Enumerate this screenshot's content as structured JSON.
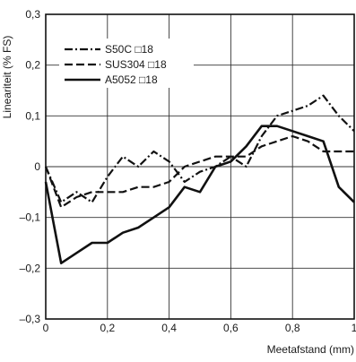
{
  "chart_data": {
    "type": "line",
    "xlabel": "Meetafstand (mm)",
    "ylabel": "Lineariteit (% FS)",
    "xlim": [
      0,
      1
    ],
    "ylim": [
      -0.3,
      0.3
    ],
    "x_ticks": [
      0,
      0.2,
      0.4,
      0.6,
      0.8,
      1
    ],
    "x_tick_labels": [
      "0",
      "0,2",
      "0,4",
      "0,6",
      "0,8",
      "1"
    ],
    "y_ticks": [
      -0.3,
      -0.2,
      -0.1,
      0,
      0.1,
      0.2,
      0.3
    ],
    "y_tick_labels": [
      "–0,3",
      "–0,2",
      "–0,1",
      "0",
      "0,1",
      "0,2",
      "0,3"
    ],
    "grid": true,
    "legend_position": "top-left",
    "series": [
      {
        "name": "S50C □18",
        "line_style": "dash-dot",
        "x": [
          0,
          0.05,
          0.1,
          0.15,
          0.2,
          0.25,
          0.3,
          0.35,
          0.4,
          0.45,
          0.5,
          0.55,
          0.6,
          0.65,
          0.7,
          0.75,
          0.8,
          0.85,
          0.9,
          0.95,
          1
        ],
        "y": [
          0,
          -0.07,
          -0.05,
          -0.07,
          -0.02,
          0.02,
          0.0,
          0.03,
          0.01,
          -0.03,
          -0.01,
          0.0,
          0.02,
          0.0,
          0.06,
          0.1,
          0.11,
          0.12,
          0.14,
          0.1,
          0.07
        ]
      },
      {
        "name": "SUS304 □18",
        "line_style": "dashed",
        "x": [
          0,
          0.05,
          0.1,
          0.15,
          0.2,
          0.25,
          0.3,
          0.35,
          0.4,
          0.45,
          0.5,
          0.55,
          0.6,
          0.65,
          0.7,
          0.75,
          0.8,
          0.85,
          0.9,
          0.95,
          1
        ],
        "y": [
          0,
          -0.08,
          -0.06,
          -0.05,
          -0.05,
          -0.05,
          -0.04,
          -0.04,
          -0.03,
          0.0,
          0.01,
          0.02,
          0.02,
          0.02,
          0.04,
          0.05,
          0.06,
          0.05,
          0.03,
          0.03,
          0.03
        ]
      },
      {
        "name": "A5052 □18",
        "line_style": "solid",
        "x": [
          0,
          0.05,
          0.1,
          0.15,
          0.2,
          0.25,
          0.3,
          0.35,
          0.4,
          0.45,
          0.5,
          0.55,
          0.6,
          0.65,
          0.7,
          0.75,
          0.8,
          0.85,
          0.9,
          0.95,
          1
        ],
        "y": [
          -0.03,
          -0.19,
          -0.17,
          -0.15,
          -0.15,
          -0.13,
          -0.12,
          -0.1,
          -0.08,
          -0.04,
          -0.05,
          0.0,
          0.01,
          0.04,
          0.08,
          0.08,
          0.07,
          0.06,
          0.05,
          -0.04,
          -0.07
        ]
      }
    ]
  }
}
